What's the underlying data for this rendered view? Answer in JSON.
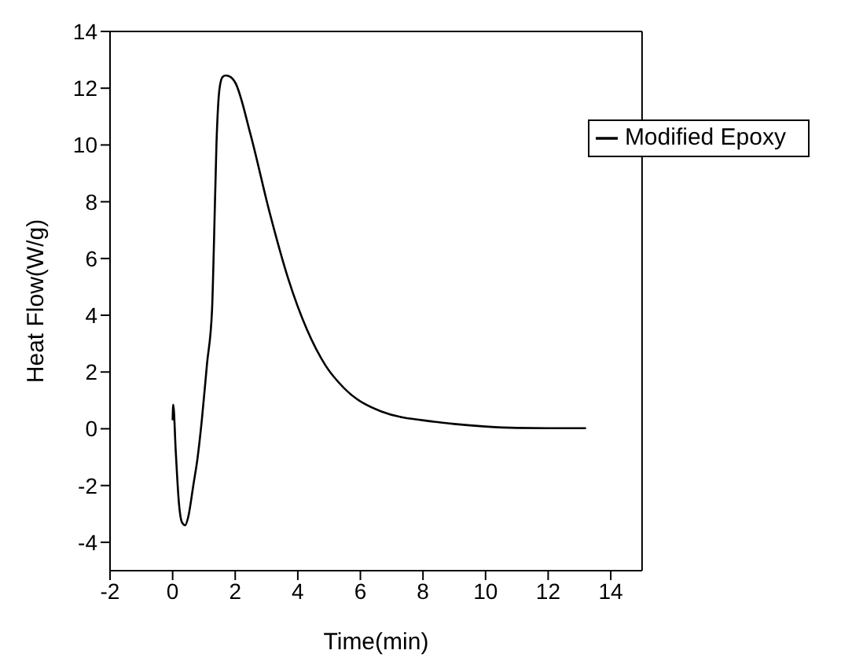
{
  "chart_data": {
    "type": "line",
    "xlabel": "Time(min)",
    "ylabel": "Heat Flow(W/g)",
    "xlim": [
      -2,
      15
    ],
    "xticks": [
      -2,
      0,
      2,
      4,
      6,
      8,
      10,
      12,
      14
    ],
    "ylim": [
      -5,
      14
    ],
    "yticks": [
      -4,
      -2,
      0,
      2,
      4,
      6,
      8,
      10,
      12,
      14
    ],
    "grid": false,
    "legend": "top right",
    "marker": "none",
    "line_style": "solid",
    "x": [
      0,
      0.02,
      0.1,
      0.2,
      0.3,
      0.4,
      0.5,
      0.66,
      0.8,
      0.93,
      1.1,
      1.26,
      1.32,
      1.4,
      1.5,
      1.6,
      1.7,
      1.85,
      2,
      2.49,
      3.09,
      3.69,
      4.29,
      4.88,
      5.48,
      6.67,
      8.35,
      9,
      10,
      11,
      12,
      13.21
    ],
    "series": [
      {
        "name": "Modified Epoxy",
        "color": "#000000",
        "values": [
          0.3,
          0.85,
          -0.8,
          -2.6,
          -3.3,
          -3.4,
          -3.1,
          -2,
          -1,
          0.27,
          2.3,
          4.2,
          6.5,
          10,
          12,
          12.4,
          12.45,
          12.4,
          12.2,
          10.37,
          7.66,
          5.3,
          3.5,
          2.24,
          1.43,
          0.61,
          0.25,
          0.17,
          0.08,
          0.03,
          0.02,
          0.02
        ]
      }
    ]
  }
}
